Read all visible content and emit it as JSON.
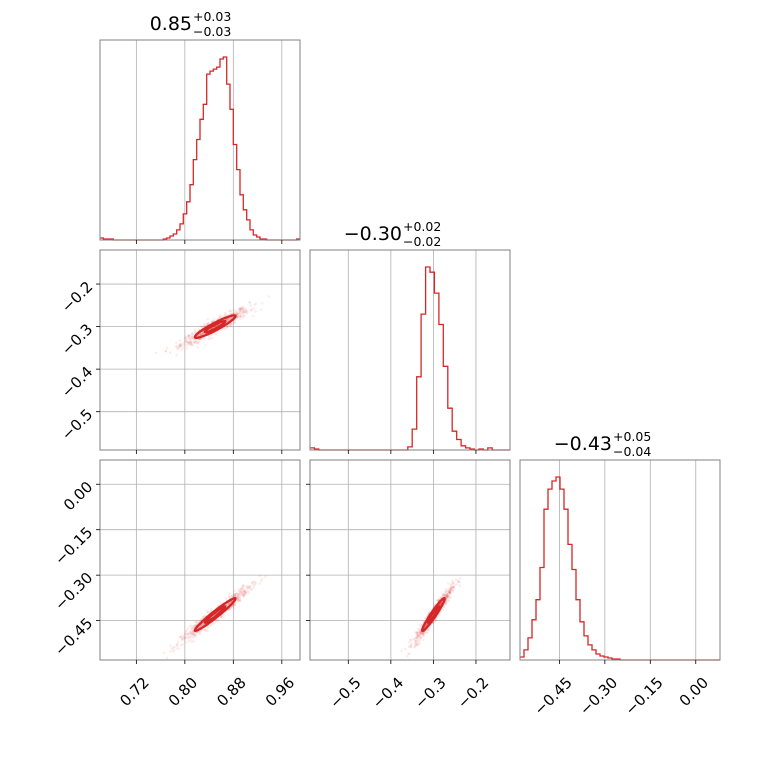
{
  "chart_data": {
    "type": "corner",
    "colors": {
      "series": "#d62728",
      "grid": "#b0b0b0",
      "frame": "#808080"
    },
    "grid": true,
    "params": [
      {
        "title": "0.85",
        "err_up": "+0.03",
        "err_down": "−0.03",
        "range": [
          0.66,
          0.99
        ],
        "center": 0.85,
        "sigma": 0.028
      },
      {
        "title": "−0.30",
        "err_up": "+0.02",
        "err_down": "−0.02",
        "range": [
          -0.59,
          -0.12
        ],
        "center": -0.3,
        "sigma": 0.022
      },
      {
        "title": "−0.43",
        "err_up": "+0.05",
        "err_down": "−0.04",
        "range": [
          -0.58,
          0.08
        ],
        "center": -0.43,
        "sigma": 0.045
      }
    ],
    "hist_0": {
      "edges": [
        0.66,
        0.99
      ],
      "counts": [
        2,
        1,
        1,
        1,
        0,
        0,
        0,
        0,
        0,
        0,
        0,
        0,
        0,
        0,
        0,
        0,
        0,
        0,
        0,
        1,
        2,
        4,
        6,
        10,
        16,
        26,
        38,
        55,
        80,
        100,
        120,
        135,
        165,
        168,
        170,
        172,
        180,
        182,
        155,
        130,
        95,
        70,
        45,
        30,
        20,
        10,
        5,
        3,
        1,
        1,
        0,
        0,
        0,
        0,
        0,
        0,
        0,
        0,
        0,
        1
      ]
    },
    "hist_1": {
      "edges": [
        -0.59,
        -0.12
      ],
      "counts": [
        2,
        1,
        0,
        0,
        0,
        0,
        0,
        0,
        0,
        0,
        0,
        0,
        0,
        0,
        0,
        0,
        0,
        0,
        0,
        0,
        0,
        0,
        3,
        20,
        70,
        130,
        175,
        170,
        150,
        120,
        80,
        40,
        18,
        10,
        4,
        2,
        1,
        0,
        1,
        0,
        2,
        0,
        0,
        0,
        0
      ]
    },
    "hist_2": {
      "edges": [
        -0.58,
        0.08
      ],
      "counts": [
        3,
        10,
        22,
        40,
        60,
        92,
        150,
        170,
        178,
        182,
        170,
        150,
        115,
        90,
        60,
        38,
        24,
        15,
        10,
        6,
        4,
        3,
        2,
        1,
        1,
        0,
        0,
        0,
        0,
        0,
        0,
        0,
        0,
        0,
        0,
        0,
        0,
        0,
        0,
        0,
        0,
        0,
        0,
        0,
        0,
        0,
        0,
        0,
        0,
        0
      ]
    },
    "panels": [
      {
        "row": 1,
        "col": 0,
        "x_param": 0,
        "y_param": 1,
        "yticks": [
          -0.5,
          -0.4,
          -0.3,
          -0.2
        ],
        "ytick_labels": [
          "−0.5",
          "−0.4",
          "−0.3",
          "−0.2"
        ]
      },
      {
        "row": 2,
        "col": 0,
        "x_param": 0,
        "y_param": 2,
        "yticks": [
          -0.45,
          -0.3,
          -0.15,
          0.0
        ],
        "ytick_labels": [
          "−0.45",
          "−0.30",
          "−0.15",
          "0.00"
        ]
      },
      {
        "row": 2,
        "col": 1,
        "x_param": 1,
        "y_param": 2
      }
    ],
    "xticks": [
      {
        "param": 0,
        "values": [
          0.72,
          0.8,
          0.88,
          0.96
        ],
        "labels": [
          "0.72",
          "0.80",
          "0.88",
          "0.96"
        ]
      },
      {
        "param": 1,
        "values": [
          -0.5,
          -0.4,
          -0.3,
          -0.2
        ],
        "labels": [
          "−0.5",
          "−0.4",
          "−0.3",
          "−0.2"
        ]
      },
      {
        "param": 2,
        "values": [
          -0.45,
          -0.3,
          -0.15,
          0.0
        ],
        "labels": [
          "−0.45",
          "−0.30",
          "−0.15",
          "0.00"
        ]
      }
    ],
    "correlations": {
      "p0_p1": 0.93,
      "p0_p2": 0.97,
      "p1_p2": 0.96
    }
  }
}
